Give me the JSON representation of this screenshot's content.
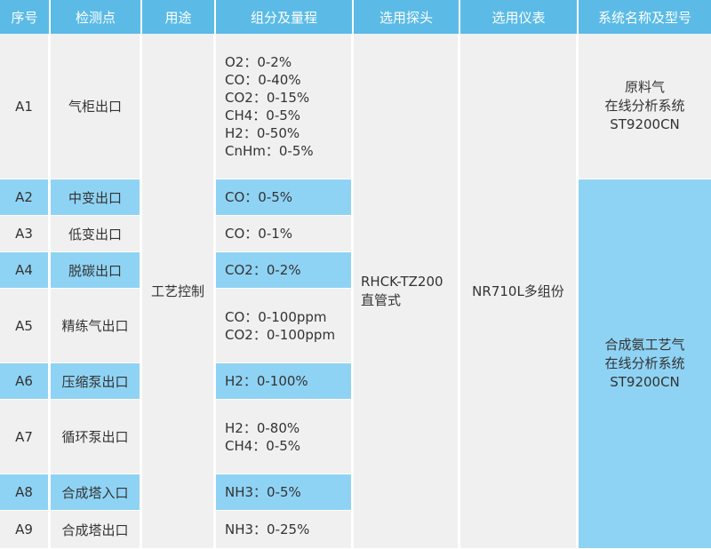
{
  "headers": [
    "序号",
    "检测点",
    "用途",
    "组分及量程",
    "选用探头",
    "选用仪表",
    "系统名称及型号"
  ],
  "rows": [
    {
      "id": "A1",
      "point": "气柜出口",
      "components": [
        "O2：0-2%",
        "CO：0-40%",
        "CO2：0-15%",
        "CH4：0-5%",
        "H2：0-50%",
        "CnHm：0-5%"
      ],
      "highlight": false
    },
    {
      "id": "A2",
      "point": "中变出口",
      "components": [
        "CO：0-5%"
      ],
      "highlight": true
    },
    {
      "id": "A3",
      "point": "低变出口",
      "components": [
        "CO：0-1%"
      ],
      "highlight": false
    },
    {
      "id": "A4",
      "point": "脱碳出口",
      "components": [
        "CO2：0-2%"
      ],
      "highlight": true
    },
    {
      "id": "A5",
      "point": "精练气出口",
      "components": [
        "CO：0-100ppm",
        "CO2：0-100ppm"
      ],
      "highlight": false
    },
    {
      "id": "A6",
      "point": "压缩泵出口",
      "components": [
        "H2：0-100%"
      ],
      "highlight": true
    },
    {
      "id": "A7",
      "point": "循环泵出口",
      "components": [
        "H2：0-80%",
        "CH4：0-5%"
      ],
      "highlight": false
    },
    {
      "id": "A8",
      "point": "合成塔入口",
      "components": [
        "NH3：0-5%"
      ],
      "highlight": true
    },
    {
      "id": "A9",
      "point": "合成塔出口",
      "components": [
        "NH3：0-25%"
      ],
      "highlight": false
    }
  ],
  "usage": "工艺控制",
  "probe": [
    "RHCK-TZ200",
    "直管式"
  ],
  "instrument": "NR710L多组份",
  "system1": [
    "原料气",
    "在线分析系统",
    "ST9200CN"
  ],
  "system2": [
    "合成氨工艺气",
    "在线分析系统",
    "ST9200CN"
  ],
  "colors": {
    "header": "#5bbbe6",
    "highlight": "#8fd3f4",
    "cell": "#f0f0f0"
  }
}
